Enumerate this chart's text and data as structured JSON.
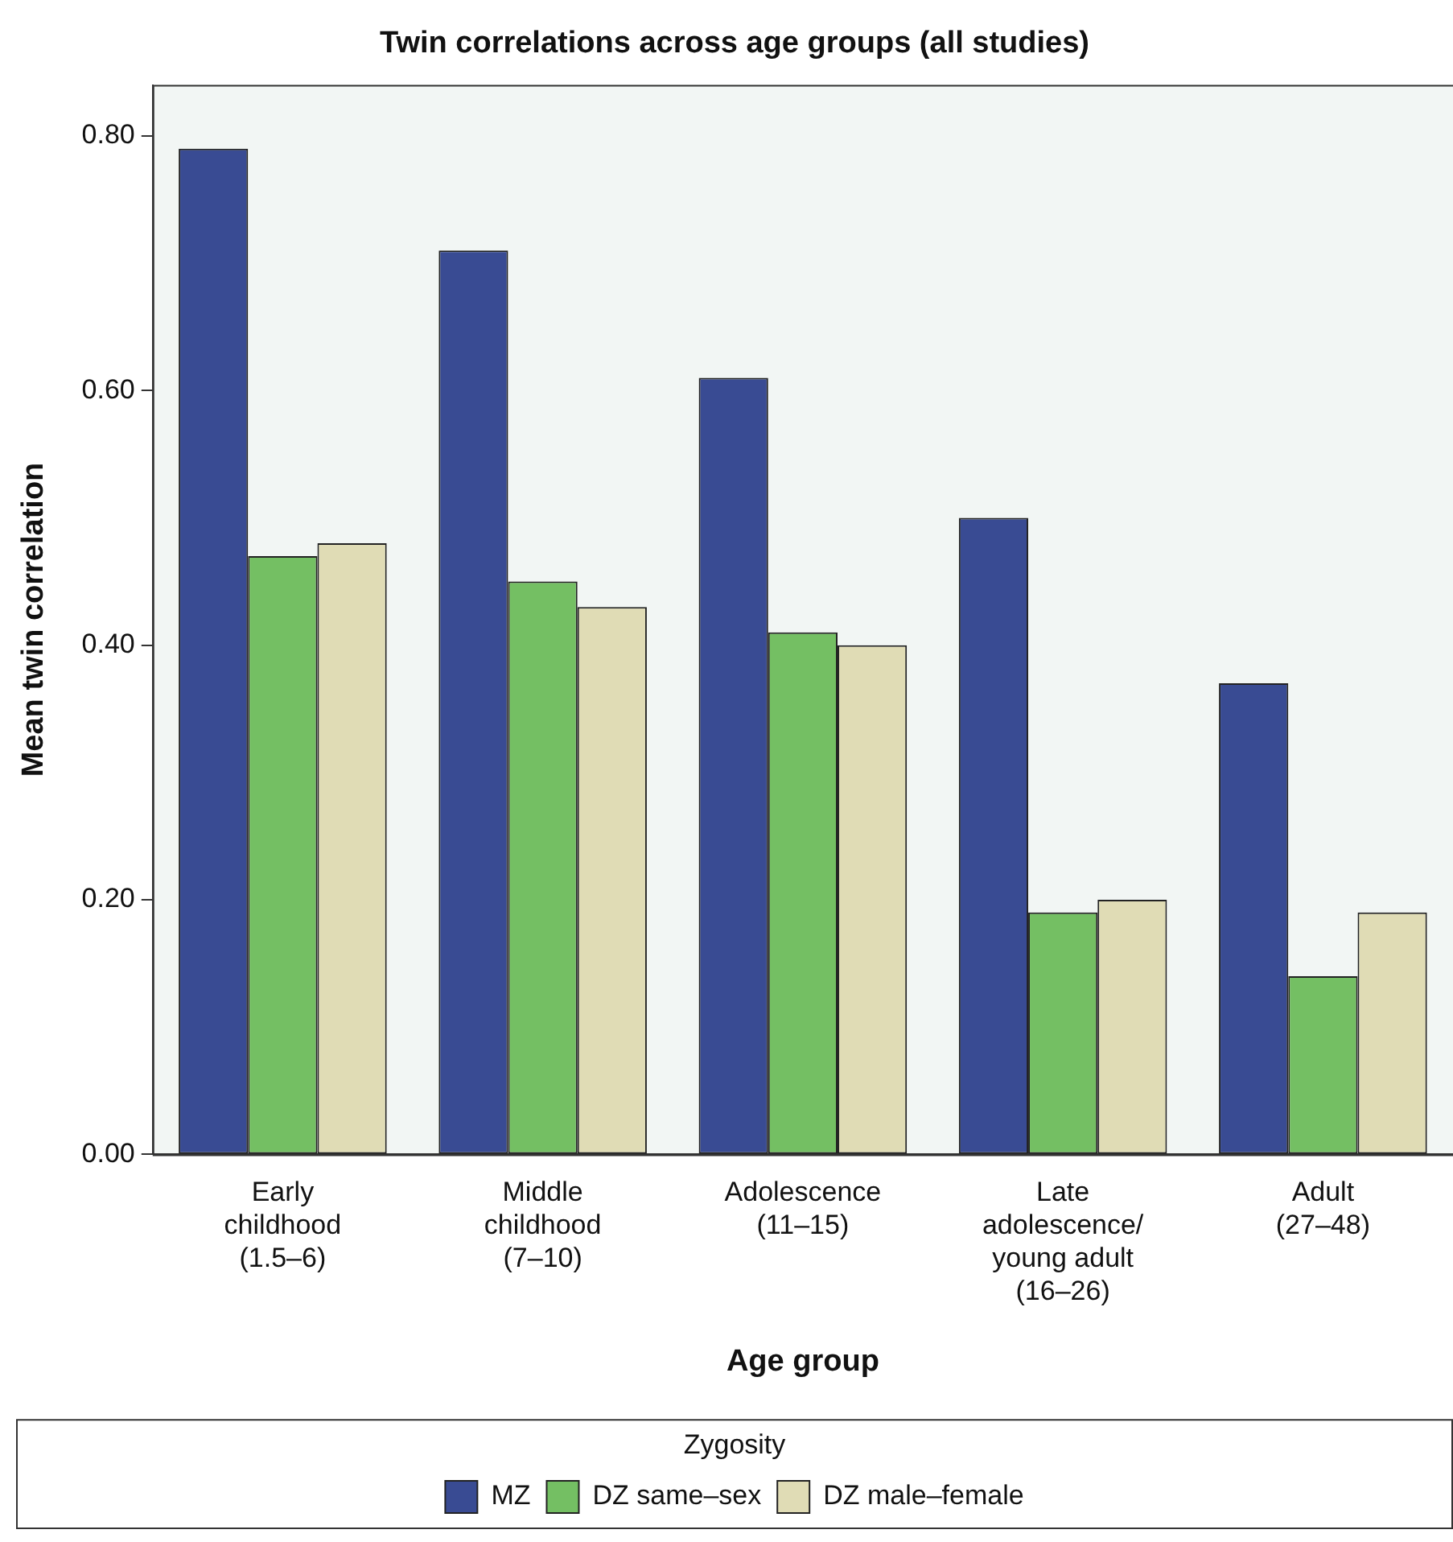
{
  "chart_data": {
    "type": "bar",
    "title": "Twin correlations across age groups (all studies)",
    "xlabel": "Age group",
    "ylabel": "Mean twin correlation",
    "legend_title": "Zygosity",
    "categories": [
      "Early\nchildhood\n(1.5–6)",
      "Middle\nchildhood\n(7–10)",
      "Adolescence\n(11–15)",
      "Late\nadolescence/\nyoung adult\n(16–26)",
      "Adult\n(27–48)"
    ],
    "series": [
      {
        "name": "MZ",
        "color": "#394b93",
        "values": [
          0.79,
          0.71,
          0.61,
          0.5,
          0.37
        ]
      },
      {
        "name": "DZ same–sex",
        "color": "#74bf63",
        "values": [
          0.47,
          0.45,
          0.41,
          0.19,
          0.14
        ]
      },
      {
        "name": "DZ male–female",
        "color": "#e0dcb5",
        "values": [
          0.48,
          0.43,
          0.4,
          0.2,
          0.19
        ]
      }
    ],
    "ylim": [
      0,
      0.84
    ],
    "yticks": [
      {
        "value": 0,
        "label": "0.00"
      },
      {
        "value": 0.2,
        "label": "0.20"
      },
      {
        "value": 0.4,
        "label": "0.40"
      },
      {
        "value": 0.6,
        "label": "0.60"
      },
      {
        "value": 0.8,
        "label": "0.80"
      }
    ],
    "grid": false,
    "legend": "bottom"
  }
}
